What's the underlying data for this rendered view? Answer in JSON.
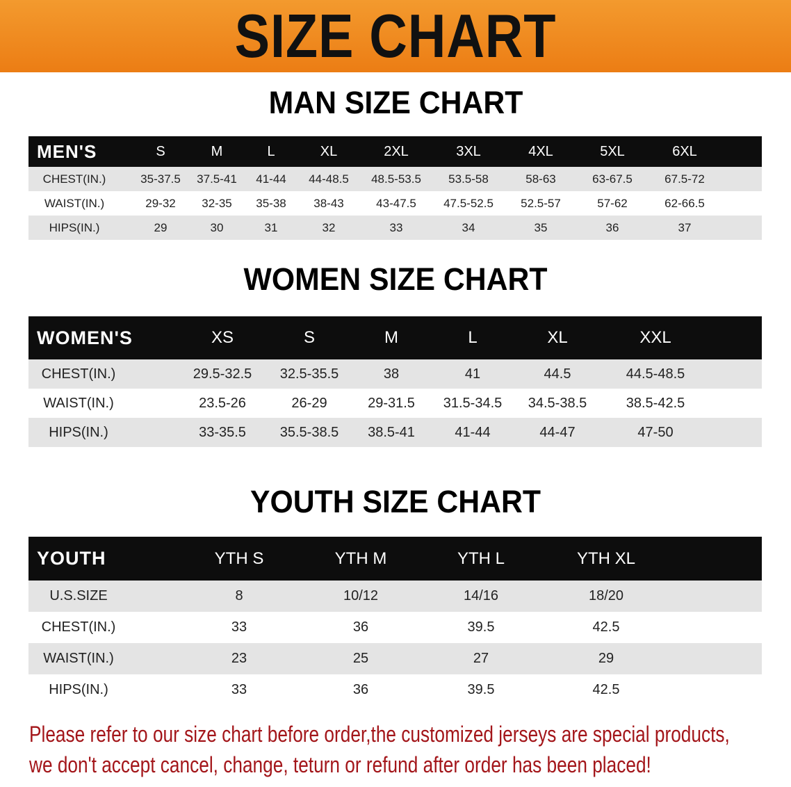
{
  "banner": {
    "title": "SIZE CHART",
    "color": "#ec7d14"
  },
  "men": {
    "title": "MAN SIZE CHART",
    "header_label": "MEN'S",
    "sizes": [
      "S",
      "M",
      "L",
      "XL",
      "2XL",
      "3XL",
      "4XL",
      "5XL",
      "6XL"
    ],
    "rows": [
      {
        "label": "CHEST(IN.)",
        "values": [
          "35-37.5",
          "37.5-41",
          "41-44",
          "44-48.5",
          "48.5-53.5",
          "53.5-58",
          "58-63",
          "63-67.5",
          "67.5-72"
        ]
      },
      {
        "label": "WAIST(IN.)",
        "values": [
          "29-32",
          "32-35",
          "35-38",
          "38-43",
          "43-47.5",
          "47.5-52.5",
          "52.5-57",
          "57-62",
          "62-66.5"
        ]
      },
      {
        "label": "HIPS(IN.)",
        "values": [
          "29",
          "30",
          "31",
          "32",
          "33",
          "34",
          "35",
          "36",
          "37"
        ]
      }
    ]
  },
  "women": {
    "title": "WOMEN SIZE CHART",
    "header_label": "WOMEN'S",
    "sizes": [
      "XS",
      "S",
      "M",
      "L",
      "XL",
      "XXL"
    ],
    "rows": [
      {
        "label": "CHEST(IN.)",
        "values": [
          "29.5-32.5",
          "32.5-35.5",
          "38",
          "41",
          "44.5",
          "44.5-48.5"
        ]
      },
      {
        "label": "WAIST(IN.)",
        "values": [
          "23.5-26",
          "26-29",
          "29-31.5",
          "31.5-34.5",
          "34.5-38.5",
          "38.5-42.5"
        ]
      },
      {
        "label": "HIPS(IN.)",
        "values": [
          "33-35.5",
          "35.5-38.5",
          "38.5-41",
          "41-44",
          "44-47",
          "47-50"
        ]
      }
    ]
  },
  "youth": {
    "title": "YOUTH SIZE CHART",
    "header_label": "YOUTH",
    "sizes": [
      "YTH S",
      "YTH M",
      "YTH L",
      "YTH XL"
    ],
    "rows": [
      {
        "label": "U.S.SIZE",
        "values": [
          "8",
          "10/12",
          "14/16",
          "18/20"
        ]
      },
      {
        "label": "CHEST(IN.)",
        "values": [
          "33",
          "36",
          "39.5",
          "42.5"
        ]
      },
      {
        "label": "WAIST(IN.)",
        "values": [
          "23",
          "25",
          "27",
          "29"
        ]
      },
      {
        "label": "HIPS(IN.)",
        "values": [
          "33",
          "36",
          "39.5",
          "42.5"
        ]
      }
    ]
  },
  "note": {
    "line1": "Please refer to our size chart before order,the customized jerseys are special products,",
    "line2": "we don't accept cancel, change, teturn or refund after order has been placed!",
    "color": "#a3161a"
  }
}
